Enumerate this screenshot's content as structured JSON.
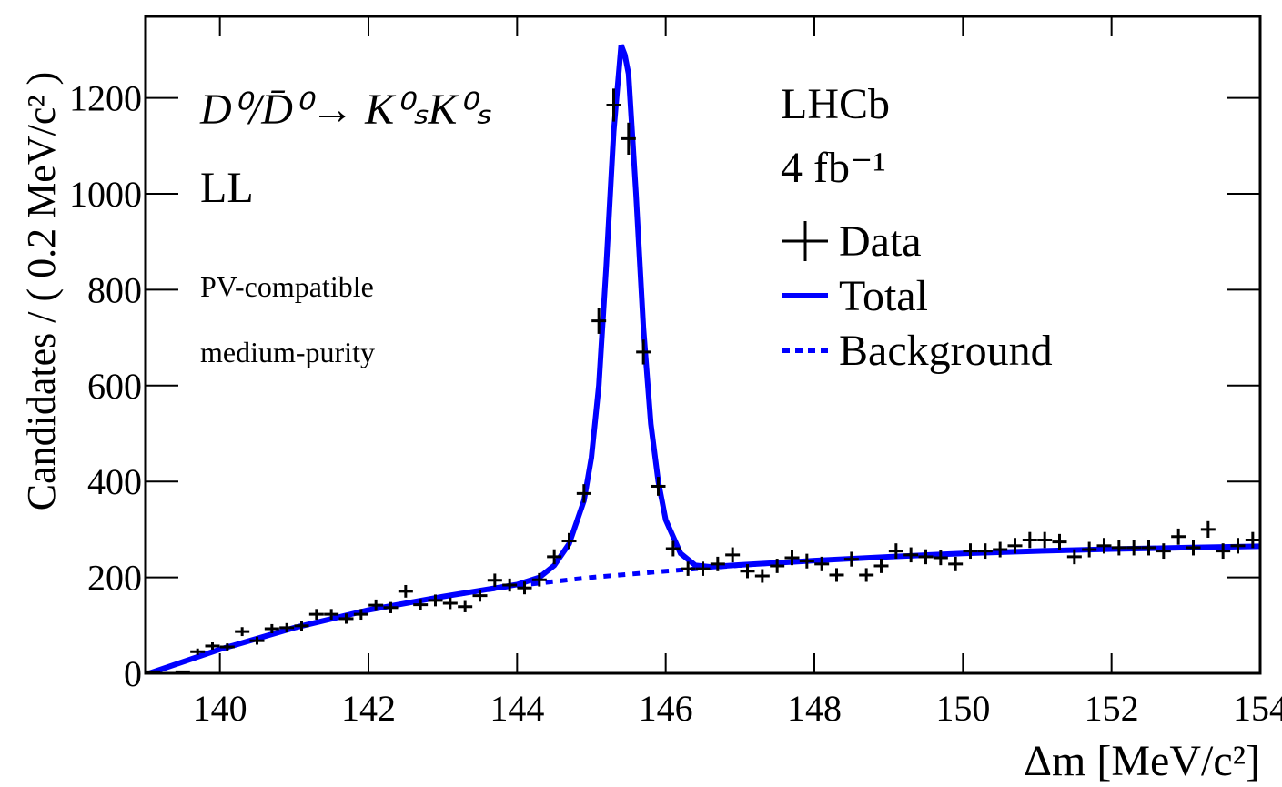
{
  "chart_data": {
    "type": "errorbar",
    "x_label": "Δm [MeV/c²]",
    "y_label": "Candidates / ( 0.2 MeV/c² )",
    "xlim": [
      139,
      154
    ],
    "ylim": [
      0,
      1370
    ],
    "xticks": [
      140,
      142,
      144,
      146,
      148,
      150,
      152,
      154
    ],
    "yticks": [
      0,
      200,
      400,
      600,
      800,
      1000,
      1200
    ],
    "annotations": [
      "D⁰/D̄⁰→ K⁰ₛK⁰ₛ",
      "LL",
      "PV-compatible",
      "medium-purity",
      "LHCb",
      "4 fb⁻¹"
    ],
    "series": [
      {
        "name": "Data",
        "kind": "points",
        "color": "#000000",
        "x": [
          139.1,
          139.3,
          139.5,
          139.7,
          139.9,
          140.1,
          140.3,
          140.5,
          140.7,
          140.9,
          141.1,
          141.3,
          141.5,
          141.7,
          141.9,
          142.1,
          142.3,
          142.5,
          142.7,
          142.9,
          143.1,
          143.3,
          143.5,
          143.7,
          143.9,
          144.1,
          144.3,
          144.5,
          144.7,
          144.9,
          145.1,
          145.3,
          145.5,
          145.7,
          145.9,
          146.1,
          146.3,
          146.5,
          146.7,
          146.9,
          147.1,
          147.3,
          147.5,
          147.7,
          147.9,
          148.1,
          148.3,
          148.5,
          148.7,
          148.9,
          149.1,
          149.3,
          149.5,
          149.7,
          149.9,
          150.1,
          150.3,
          150.5,
          150.7,
          150.9,
          151.1,
          151.3,
          151.5,
          151.7,
          151.9,
          152.1,
          152.3,
          152.5,
          152.7,
          152.9,
          153.1,
          153.3,
          153.5,
          153.7,
          153.9
        ],
        "values": [
          3,
          0,
          3,
          45,
          57,
          55,
          87,
          68,
          93,
          95,
          99,
          123,
          123,
          114,
          123,
          142,
          137,
          171,
          143,
          152,
          146,
          139,
          162,
          194,
          184,
          178,
          195,
          243,
          276,
          375,
          735,
          1185,
          1115,
          670,
          390,
          260,
          218,
          218,
          228,
          247,
          213,
          203,
          224,
          241,
          234,
          228,
          205,
          238,
          205,
          224,
          255,
          247,
          243,
          241,
          228,
          255,
          255,
          258,
          266,
          278,
          278,
          274,
          243,
          258,
          266,
          262,
          262,
          262,
          255,
          285,
          262,
          300,
          255,
          266,
          278
        ],
        "errors": [
          1.7,
          0,
          1.7,
          6.7,
          7.5,
          7.4,
          9.3,
          8.2,
          9.6,
          9.7,
          9.9,
          11.1,
          11.1,
          10.7,
          11.1,
          11.9,
          11.7,
          13.1,
          12,
          12.3,
          12.1,
          11.8,
          12.7,
          13.9,
          13.6,
          13.3,
          14,
          15.6,
          16.6,
          19.4,
          27.1,
          34.4,
          33.4,
          25.9,
          19.7,
          16.1,
          14.8,
          14.8,
          15.1,
          15.7,
          14.6,
          14.2,
          15,
          15.5,
          15.3,
          15.1,
          14.3,
          15.4,
          14.3,
          15,
          16,
          15.7,
          15.6,
          15.5,
          15.1,
          16,
          16,
          16.1,
          16.3,
          16.7,
          16.7,
          16.6,
          15.6,
          16.1,
          16.3,
          16.2,
          16.2,
          16.2,
          16,
          16.9,
          16.2,
          17.3,
          16,
          16.3,
          16.7
        ]
      },
      {
        "name": "Total",
        "kind": "line",
        "style": "solid",
        "color": "#0000ff",
        "x": [
          139.05,
          140,
          141,
          142,
          143,
          144,
          144.3,
          144.5,
          144.7,
          144.9,
          145.0,
          145.1,
          145.2,
          145.3,
          145.4,
          145.45,
          145.5,
          145.6,
          145.7,
          145.8,
          145.9,
          146.0,
          146.2,
          146.4,
          146.6,
          147,
          148,
          149,
          150,
          151,
          152,
          153,
          154
        ],
        "values": [
          0,
          50,
          95,
          132,
          160,
          185,
          200,
          225,
          270,
          360,
          450,
          600,
          850,
          1130,
          1310,
          1290,
          1250,
          1000,
          720,
          520,
          400,
          320,
          250,
          225,
          222,
          226,
          235,
          243,
          250,
          255,
          259,
          262,
          265
        ]
      },
      {
        "name": "Background",
        "kind": "line",
        "style": "dotted",
        "color": "#0000ff",
        "x": [
          139.05,
          140,
          141,
          142,
          143,
          144,
          145,
          146,
          147,
          148,
          149,
          150,
          151,
          152,
          153,
          154
        ],
        "values": [
          0,
          50,
          95,
          132,
          160,
          183,
          200,
          213,
          225,
          235,
          243,
          250,
          255,
          259,
          262,
          265
        ]
      }
    ]
  }
}
